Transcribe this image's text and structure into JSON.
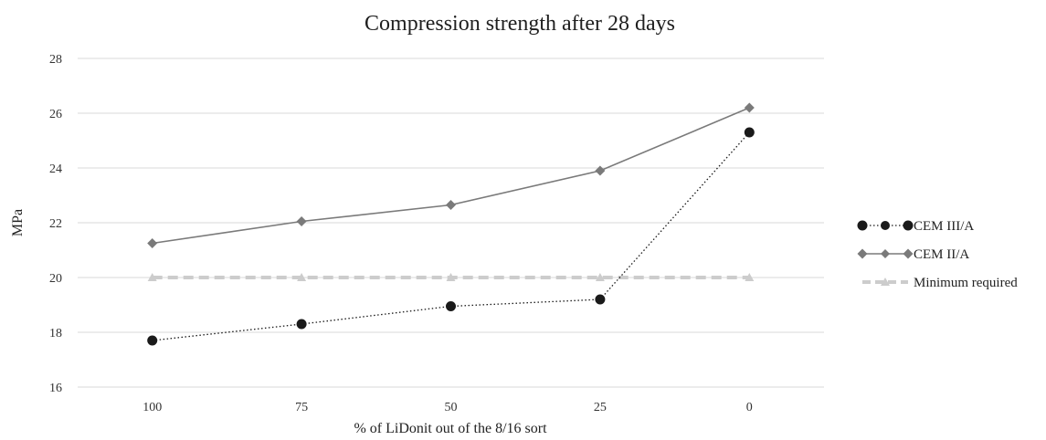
{
  "chart_data": {
    "type": "line",
    "title": "Compression strength after 28 days",
    "xlabel": "% of LiDonit out of the 8/16 sort",
    "ylabel": "MPa",
    "categories": [
      "100",
      "75",
      "50",
      "25",
      "0"
    ],
    "ylim": [
      16,
      28
    ],
    "yticks": [
      "16",
      "18",
      "20",
      "22",
      "24",
      "26",
      "28"
    ],
    "grid": "horizontal",
    "legend_position": "right",
    "series": [
      {
        "name": "CEM III/A",
        "values": [
          17.7,
          18.3,
          18.95,
          19.2,
          25.3
        ],
        "color": "#1a1a1a",
        "line_style": "dotted",
        "marker": "circle"
      },
      {
        "name": "CEM II/A",
        "values": [
          21.25,
          22.05,
          22.65,
          23.9,
          26.2
        ],
        "color": "#7a7a7a",
        "line_style": "solid",
        "marker": "diamond"
      },
      {
        "name": "Minimum required",
        "values": [
          20,
          20,
          20,
          20,
          20
        ],
        "color": "#cccccc",
        "line_style": "dashed",
        "marker": "triangle"
      }
    ]
  }
}
